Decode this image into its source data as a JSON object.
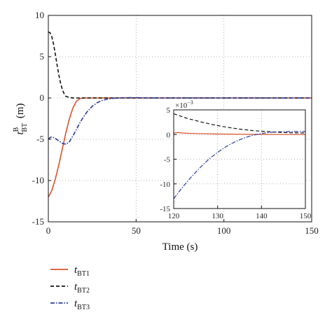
{
  "chart_data": [
    {
      "type": "line",
      "xlabel": "Time (s)",
      "ylabel": {
        "base": "t",
        "sup": "B",
        "sub": "BT",
        "unit": "(m)"
      },
      "xlim": [
        0,
        150
      ],
      "ylim": [
        -15,
        10
      ],
      "xticks": [
        "0",
        "50",
        "100",
        "150"
      ],
      "yticks": [
        "10",
        "5",
        "0",
        "-5",
        "-10",
        "-15"
      ],
      "grid": "dotted",
      "legend_placement": "bottom-left, below axes",
      "series": [
        {
          "name": "t_BT1",
          "label_base": "t",
          "label_sub": "BT1",
          "color": "#d9532b",
          "style": "solid",
          "x": [
            0,
            2,
            4,
            6,
            8,
            10,
            12,
            14,
            16,
            18,
            20,
            25,
            30,
            40,
            50,
            60,
            80,
            100,
            120,
            150
          ],
          "y": [
            -12,
            -11.2,
            -9.8,
            -8.1,
            -6.1,
            -4.2,
            -2.5,
            -1.2,
            -0.4,
            -0.08,
            0,
            0,
            0,
            0,
            0,
            0,
            0,
            0,
            0,
            0
          ]
        },
        {
          "name": "t_BT2",
          "label_base": "t",
          "label_sub": "BT2",
          "color": "#111111",
          "style": "dashed",
          "x": [
            0,
            1,
            2,
            3,
            4,
            5,
            6,
            7,
            8,
            9,
            10,
            12,
            14,
            16,
            20,
            30,
            50,
            100,
            150
          ],
          "y": [
            8,
            7.9,
            7.4,
            6.5,
            5.3,
            4.0,
            2.8,
            1.8,
            1.0,
            0.5,
            0.2,
            0.05,
            0.01,
            0,
            0,
            0,
            0,
            0,
            0
          ]
        },
        {
          "name": "t_BT3",
          "label_base": "t",
          "label_sub": "BT3",
          "color": "#2a3c9e",
          "style": "dashdot",
          "x": [
            0,
            1,
            2,
            3,
            4,
            6,
            8,
            10,
            12,
            14,
            16,
            18,
            20,
            22,
            25,
            28,
            31,
            34,
            37,
            40,
            45,
            50,
            60,
            80,
            100,
            150
          ],
          "y": [
            -5,
            -4.8,
            -4.7,
            -4.8,
            -4.9,
            -5.2,
            -5.5,
            -5.6,
            -5.3,
            -4.6,
            -3.8,
            -3.0,
            -2.3,
            -1.7,
            -1.0,
            -0.55,
            -0.28,
            -0.12,
            -0.04,
            0,
            0.04,
            0.03,
            0,
            0,
            0,
            0
          ]
        }
      ]
    },
    {
      "type": "line",
      "inset": true,
      "xlim": [
        120,
        150
      ],
      "ylim": [
        -15,
        5
      ],
      "xticks": [
        "120",
        "130",
        "140",
        "150"
      ],
      "yticks": [
        "5",
        "0",
        "-5",
        "-10",
        "-15"
      ],
      "scale_label": {
        "base": "×10",
        "exp": "−3"
      },
      "grid": "dotted",
      "series": [
        {
          "name": "t_BT1",
          "color": "#d9532b",
          "style": "solid",
          "x": [
            120,
            121,
            122,
            125,
            130,
            135,
            140,
            145,
            150
          ],
          "y": [
            0.3,
            0.4,
            0.3,
            0.2,
            0.1,
            0.05,
            0.02,
            0.01,
            0
          ]
        },
        {
          "name": "t_BT2",
          "color": "#111111",
          "style": "dashed",
          "x": [
            120,
            123,
            126,
            129,
            132,
            135,
            138,
            141,
            144,
            147,
            150
          ],
          "y": [
            4.2,
            3.3,
            2.6,
            2.0,
            1.5,
            1.1,
            0.8,
            0.6,
            0.45,
            0.35,
            0.3
          ]
        },
        {
          "name": "t_BT3",
          "color": "#2a3c9e",
          "style": "dashdot",
          "x": [
            120,
            122,
            124,
            126,
            128,
            130,
            132,
            134,
            136,
            138,
            140,
            142,
            144,
            146,
            148,
            150
          ],
          "y": [
            -13,
            -10.7,
            -8.6,
            -6.7,
            -5.0,
            -3.6,
            -2.4,
            -1.45,
            -0.7,
            -0.15,
            0.2,
            0.45,
            0.55,
            0.6,
            0.6,
            0.6
          ]
        }
      ]
    }
  ]
}
